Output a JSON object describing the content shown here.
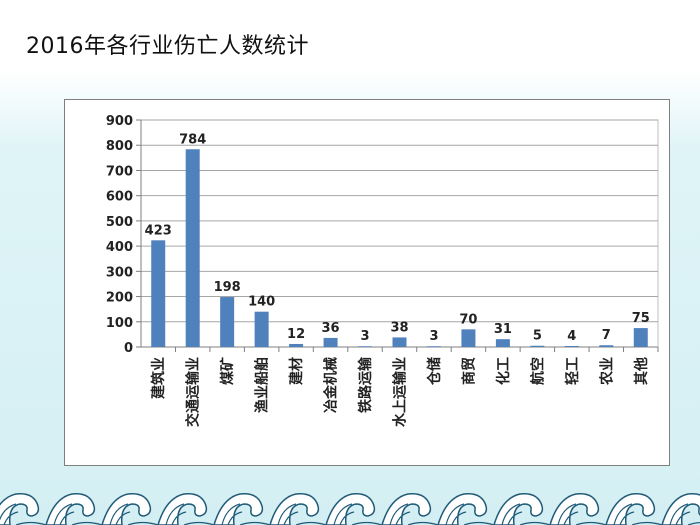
{
  "slide": {
    "title": "2016年各行业伤亡人数统计"
  },
  "chart_data": {
    "type": "bar",
    "title": "",
    "xlabel": "",
    "ylabel": "",
    "ylim": [
      0,
      900
    ],
    "yticks": [
      0,
      100,
      200,
      300,
      400,
      500,
      600,
      700,
      800,
      900
    ],
    "grid": true,
    "legend": "none",
    "bar_color": "#4f81bd",
    "categories": [
      "建筑业",
      "交通运输业",
      "煤矿",
      "渔业船舶",
      "建材",
      "冶金机械",
      "铁路运输",
      "水上运输业",
      "仓储",
      "商贸",
      "化工",
      "航空",
      "轻工",
      "农业",
      "其他"
    ],
    "values": [
      423,
      784,
      198,
      140,
      12,
      36,
      3,
      38,
      3,
      70,
      31,
      5,
      4,
      7,
      75
    ],
    "data_labels": [
      "423",
      "784",
      "198",
      "140",
      "12",
      "36",
      "3",
      "38",
      "3",
      "70",
      "31",
      "5",
      "4",
      "7",
      "75"
    ]
  },
  "colors": {
    "bar": "#4f81bd",
    "grid": "#a6a6a6",
    "background_gradient": "#d4eff3",
    "wave_fill": "#ffffff",
    "wave_stroke": "#1f5a78"
  }
}
